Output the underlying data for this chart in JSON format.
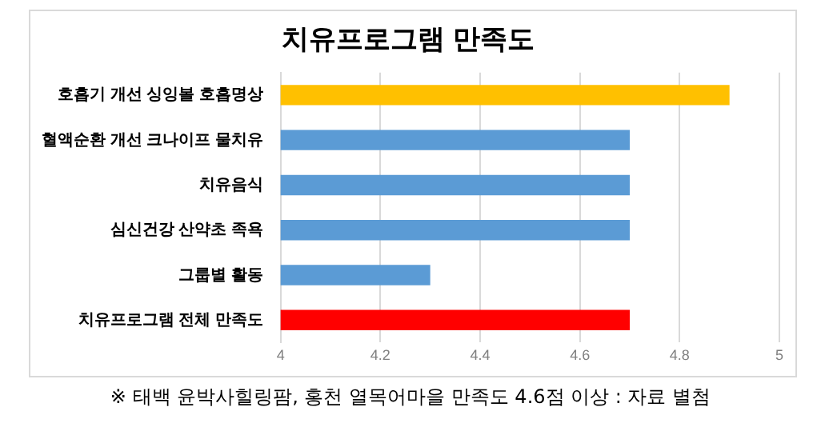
{
  "chart_data": {
    "type": "bar",
    "orientation": "horizontal",
    "title": "치유프로그램 만족도",
    "categories": [
      "호흡기 개선 싱잉볼 호흡명상",
      "혈액순환 개선 크나이프 물치유",
      "치유음식",
      "심신건강 산약초 족욕",
      "그룹별 활동",
      "치유프로그램 전체 만족도"
    ],
    "values": [
      4.9,
      4.7,
      4.7,
      4.7,
      4.3,
      4.7
    ],
    "colors": [
      "#ffc000",
      "#5b9bd5",
      "#5b9bd5",
      "#5b9bd5",
      "#5b9bd5",
      "#ff0000"
    ],
    "xlim": [
      4,
      5
    ],
    "xticks": [
      4,
      4.2,
      4.4,
      4.6,
      4.8,
      5
    ],
    "grid": "x",
    "legend": false,
    "annotations": [
      "※ 태백 윤박사힐링팜, 홍천 열목어마을 만족도 4.6점 이상 : 자료 별첨"
    ]
  }
}
